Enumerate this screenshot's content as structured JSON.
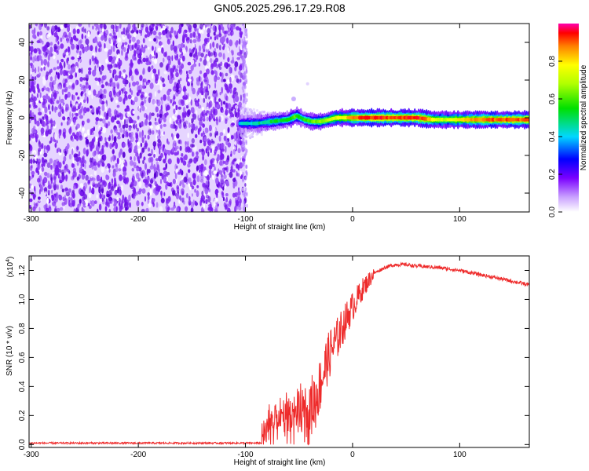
{
  "title": "GN05.2025.296.17.29.R08",
  "chart_data": [
    {
      "type": "heatmap",
      "xlabel": "Height of straight line (km)",
      "ylabel": "Frequency (Hz)",
      "xlim": [
        -302,
        165
      ],
      "ylim": [
        -50,
        50
      ],
      "x_ticks": [
        -300,
        -200,
        -100,
        0,
        100
      ],
      "y_ticks": [
        -40,
        -20,
        0,
        20,
        40
      ],
      "noise_region_x": [
        -302,
        -100
      ],
      "ridge": {
        "x": [
          -105,
          -90,
          -75,
          -60,
          -52,
          -45,
          -38,
          -30,
          -22,
          -15,
          -5,
          0,
          20,
          40,
          60,
          75,
          85,
          95,
          110,
          130,
          165
        ],
        "y": [
          -3,
          -3,
          -2,
          -1,
          1,
          -1,
          -2,
          -2,
          -1,
          0,
          0,
          0,
          0,
          0,
          0,
          -1,
          -1,
          -1,
          -1,
          -1,
          -1
        ],
        "amplitude": [
          0.4,
          0.45,
          0.5,
          0.55,
          0.6,
          0.55,
          0.6,
          0.65,
          0.7,
          0.75,
          0.8,
          0.9,
          0.95,
          0.9,
          0.95,
          0.8,
          0.7,
          0.75,
          0.85,
          0.9,
          0.9
        ]
      },
      "colorbar": {
        "label": "Normalized spectral amplitude",
        "ticks": [
          "0.0",
          "0.2",
          "0.4",
          "0.6",
          "0.8"
        ],
        "range": [
          0,
          1
        ]
      }
    },
    {
      "type": "line",
      "xlabel": "Height of straight line (km)",
      "ylabel": "SNR (10 * v/v)",
      "y_scale_label": "(x10",
      "y_scale_exp": "4",
      "y_scale_close": ")",
      "xlim": [
        -302,
        165
      ],
      "ylim": [
        -0.02,
        1.3
      ],
      "x_ticks": [
        -300,
        -200,
        -100,
        0,
        100
      ],
      "y_ticks": [
        "0.0",
        "0.2",
        "0.4",
        "0.6",
        "0.8",
        "1.0",
        "1.2"
      ],
      "color": "#ee2a2a",
      "envelope": {
        "x": [
          -302,
          -85,
          -80,
          -75,
          -70,
          -60,
          -50,
          -40,
          -35,
          -30,
          -25,
          -20,
          -15,
          -10,
          -5,
          0,
          10,
          20,
          30,
          40,
          50,
          60,
          80,
          100,
          120,
          140,
          165
        ],
        "y": [
          0.01,
          0.01,
          0.12,
          0.2,
          0.22,
          0.24,
          0.25,
          0.26,
          0.3,
          0.42,
          0.55,
          0.65,
          0.72,
          0.8,
          0.88,
          0.95,
          1.08,
          1.18,
          1.22,
          1.24,
          1.24,
          1.23,
          1.22,
          1.2,
          1.17,
          1.14,
          1.1
        ]
      }
    }
  ]
}
